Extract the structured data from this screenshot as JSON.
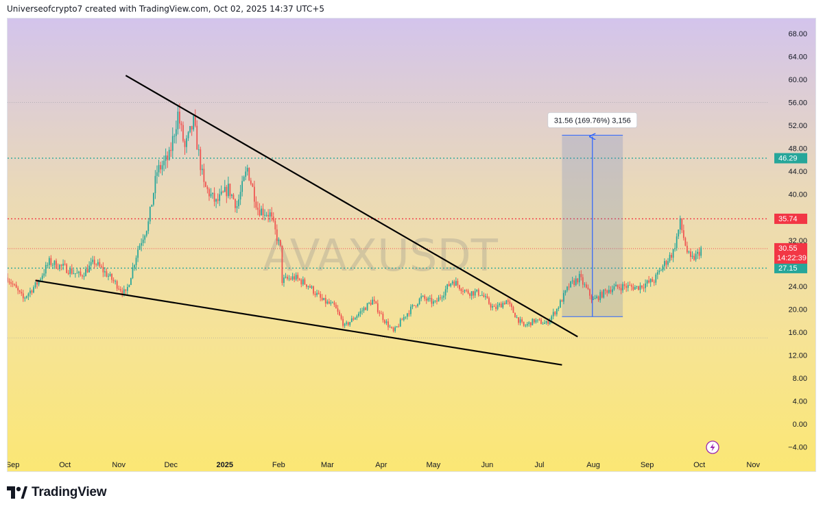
{
  "header": {
    "text": "Universeofcrypto7 created with TradingView.com, Oct 02, 2025 14:37 UTC+5"
  },
  "footer": {
    "brand": "TradingView",
    "logo_icon": "tradingview-logo-icon"
  },
  "colors": {
    "up": "#26a69a",
    "down": "#ef5350",
    "green_line": "#26a69a",
    "red_line": "#f23645",
    "measure_blue": "#2962ff"
  },
  "chart_data": {
    "type": "candlestick",
    "symbol_watermark": "AVAXUSDT",
    "y_axis": {
      "min": -6,
      "max": 72,
      "ticks": [
        "68.00",
        "64.00",
        "60.00",
        "56.00",
        "52.00",
        "48.00",
        "44.00",
        "40.00",
        "36.00",
        "32.00",
        "28.00",
        "24.00",
        "20.00",
        "16.00",
        "12.00",
        "8.00",
        "4.00",
        "0.00",
        "−4.00"
      ],
      "tick_values": [
        68,
        64,
        60,
        56,
        52,
        48,
        44,
        40,
        36,
        32,
        28,
        24,
        20,
        16,
        12,
        8,
        4,
        0,
        -4
      ]
    },
    "x_axis": {
      "start": "2024-08-29",
      "end": "2025-11-10",
      "labels": [
        {
          "text": "Sep",
          "date": "2024-09-01",
          "bold": false
        },
        {
          "text": "Oct",
          "date": "2024-10-01",
          "bold": false
        },
        {
          "text": "Nov",
          "date": "2024-11-01",
          "bold": false
        },
        {
          "text": "Dec",
          "date": "2024-12-01",
          "bold": false
        },
        {
          "text": "2025",
          "date": "2025-01-01",
          "bold": true
        },
        {
          "text": "Feb",
          "date": "2025-02-01",
          "bold": false
        },
        {
          "text": "Mar",
          "date": "2025-03-01",
          "bold": false
        },
        {
          "text": "Apr",
          "date": "2025-04-01",
          "bold": false
        },
        {
          "text": "May",
          "date": "2025-05-01",
          "bold": false
        },
        {
          "text": "Jun",
          "date": "2025-06-01",
          "bold": false
        },
        {
          "text": "Jul",
          "date": "2025-07-01",
          "bold": false
        },
        {
          "text": "Aug",
          "date": "2025-08-01",
          "bold": false
        },
        {
          "text": "Sep",
          "date": "2025-09-01",
          "bold": false
        },
        {
          "text": "Oct",
          "date": "2025-10-01",
          "bold": false
        },
        {
          "text": "Nov",
          "date": "2025-11-01",
          "bold": false
        }
      ]
    },
    "price_keypoints": [
      [
        "2024-08-29",
        25.5
      ],
      [
        "2024-09-07",
        21.8
      ],
      [
        "2024-09-15",
        24.5
      ],
      [
        "2024-09-22",
        28.2
      ],
      [
        "2024-10-01",
        27.2
      ],
      [
        "2024-10-10",
        25.8
      ],
      [
        "2024-10-18",
        28.2
      ],
      [
        "2024-10-27",
        25.5
      ],
      [
        "2024-11-05",
        22.6
      ],
      [
        "2024-11-12",
        30.5
      ],
      [
        "2024-11-18",
        35.0
      ],
      [
        "2024-11-23",
        44.0
      ],
      [
        "2024-11-30",
        46.5
      ],
      [
        "2024-12-05",
        54.0
      ],
      [
        "2024-12-09",
        48.0
      ],
      [
        "2024-12-14",
        52.5
      ],
      [
        "2024-12-20",
        41.5
      ],
      [
        "2024-12-27",
        38.5
      ],
      [
        "2025-01-03",
        41.0
      ],
      [
        "2025-01-08",
        38.0
      ],
      [
        "2025-01-14",
        44.5
      ],
      [
        "2025-01-20",
        37.5
      ],
      [
        "2025-01-27",
        36.5
      ],
      [
        "2025-02-02",
        30.5
      ],
      [
        "2025-02-03",
        25.0
      ],
      [
        "2025-02-10",
        25.5
      ],
      [
        "2025-02-18",
        24.2
      ],
      [
        "2025-02-26",
        21.5
      ],
      [
        "2025-03-05",
        20.5
      ],
      [
        "2025-03-11",
        17.0
      ],
      [
        "2025-03-20",
        19.5
      ],
      [
        "2025-03-27",
        21.5
      ],
      [
        "2025-04-03",
        18.0
      ],
      [
        "2025-04-08",
        16.0
      ],
      [
        "2025-04-15",
        19.0
      ],
      [
        "2025-04-24",
        22.0
      ],
      [
        "2025-05-02",
        21.0
      ],
      [
        "2025-05-12",
        25.0
      ],
      [
        "2025-05-20",
        23.0
      ],
      [
        "2025-05-28",
        22.8
      ],
      [
        "2025-06-05",
        20.0
      ],
      [
        "2025-06-12",
        21.5
      ],
      [
        "2025-06-18",
        18.5
      ],
      [
        "2025-06-22",
        17.0
      ],
      [
        "2025-06-28",
        18.0
      ],
      [
        "2025-07-05",
        17.5
      ],
      [
        "2025-07-11",
        20.0
      ],
      [
        "2025-07-18",
        24.0
      ],
      [
        "2025-07-24",
        25.5
      ],
      [
        "2025-08-01",
        21.5
      ],
      [
        "2025-08-10",
        23.5
      ],
      [
        "2025-08-18",
        24.0
      ],
      [
        "2025-08-26",
        23.8
      ],
      [
        "2025-09-05",
        25.0
      ],
      [
        "2025-09-10",
        27.5
      ],
      [
        "2025-09-16",
        30.0
      ],
      [
        "2025-09-20",
        35.0
      ],
      [
        "2025-09-24",
        30.0
      ],
      [
        "2025-09-26",
        28.5
      ],
      [
        "2025-09-30",
        29.5
      ],
      [
        "2025-10-02",
        30.55
      ]
    ],
    "horizontal_lines": [
      {
        "value": 46.29,
        "label": "46.29",
        "style": "dotted",
        "color": "#26a69a"
      },
      {
        "value": 35.74,
        "label": "35.74",
        "style": "dotted",
        "color": "#f23645"
      },
      {
        "value": 27.15,
        "label": "27.15",
        "style": "dotted",
        "color": "#26a69a"
      },
      {
        "value": 56.0,
        "label": "",
        "style": "faint",
        "color": "#9598a1"
      },
      {
        "value": 15.0,
        "label": "",
        "style": "faint",
        "color": "#9598a1"
      }
    ],
    "current_price": {
      "value": 30.55,
      "label": "30.55",
      "countdown": "14:22:39",
      "color": "#f23645"
    },
    "trendlines": [
      {
        "from": [
          "2024-11-05",
          60.7
        ],
        "to": [
          "2025-07-23",
          15.2
        ]
      },
      {
        "from": [
          "2024-09-14",
          25.0
        ],
        "to": [
          "2025-07-14",
          10.3
        ]
      }
    ],
    "measure": {
      "x_from": "2025-07-14",
      "x_to": "2025-08-18",
      "y_from": 18.7,
      "y_to": 50.3,
      "label": "31.56 (169.76%) 3,156"
    },
    "background_gradient": [
      "#d3c4ec",
      "#ead9b8",
      "#f6e396",
      "#fbe774"
    ]
  }
}
